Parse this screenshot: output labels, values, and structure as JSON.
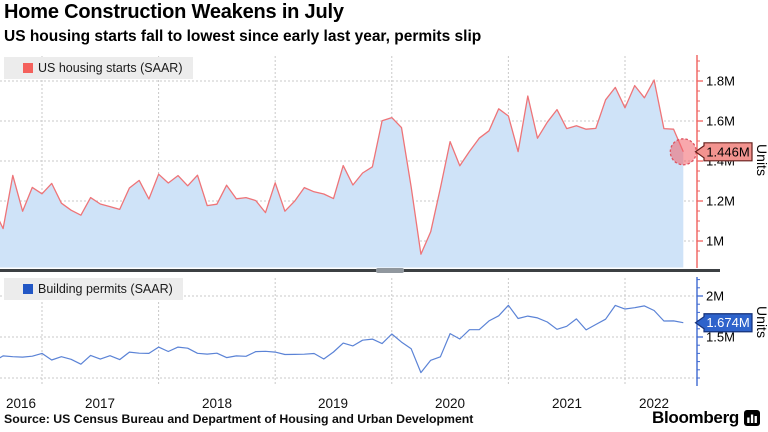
{
  "header": {
    "title": "Home Construction Weakens in July",
    "subtitle": "US housing starts fall to lowest since early last year, permits slip"
  },
  "source": "Source: US Census Bureau and Department of Housing and Urban Development",
  "brand": {
    "name": "Bloomberg"
  },
  "colors": {
    "starts_line": "#ee7478",
    "starts_area": "#cfe3f8",
    "starts_axis": "#f0625f",
    "starts_swatch": "#f4615c",
    "starts_callout_bg": "#f2938f",
    "starts_callout_border": "#66201d",
    "starts_callout_text": "#000000",
    "starts_marker_fill": "rgba(242,96,103,0.55)",
    "starts_marker_stroke": "#de5260",
    "permits_line": "#5b83d6",
    "permits_axis": "#3f6ad1",
    "permits_swatch": "#2257c5",
    "permits_callout_bg": "#2e63cb",
    "permits_callout_border": "#16327a",
    "permits_callout_text": "#ffffff",
    "grid": "#c9c9c9",
    "separator": "#3c4043",
    "separator_handle": "#90979e",
    "legend_bg": "#ececec"
  },
  "panels": [
    {
      "legend": "US housing starts (SAAR)",
      "units_label": "Units",
      "callout_value": "1.446M",
      "y_ticks": [
        "1.8M",
        "1.6M",
        "1.4M",
        "1.2M",
        "1M"
      ],
      "y_tick_values": [
        1.8,
        1.6,
        1.4,
        1.2,
        1.0
      ]
    },
    {
      "legend": "Building permits (SAAR)",
      "units_label": "Units",
      "callout_value": "1.674M",
      "y_ticks": [
        "2M",
        "1.5M"
      ],
      "y_tick_values": [
        2.0,
        1.5
      ]
    }
  ],
  "x_axis": {
    "year_labels": [
      "2016",
      "2017",
      "2018",
      "2019",
      "2020",
      "2021",
      "2022"
    ]
  },
  "chart_data": [
    {
      "type": "area",
      "name": "US housing starts (SAAR)",
      "unit": "millions of units, seasonally adjusted annual rate",
      "months": [
        "2016-08",
        "2016-09",
        "2016-10",
        "2016-11",
        "2016-12",
        "2017-01",
        "2017-02",
        "2017-03",
        "2017-04",
        "2017-05",
        "2017-06",
        "2017-07",
        "2017-08",
        "2017-09",
        "2017-10",
        "2017-11",
        "2017-12",
        "2018-01",
        "2018-02",
        "2018-03",
        "2018-04",
        "2018-05",
        "2018-06",
        "2018-07",
        "2018-08",
        "2018-09",
        "2018-10",
        "2018-11",
        "2018-12",
        "2019-01",
        "2019-02",
        "2019-03",
        "2019-04",
        "2019-05",
        "2019-06",
        "2019-07",
        "2019-08",
        "2019-09",
        "2019-10",
        "2019-11",
        "2019-12",
        "2020-01",
        "2020-02",
        "2020-03",
        "2020-04",
        "2020-05",
        "2020-06",
        "2020-07",
        "2020-08",
        "2020-09",
        "2020-10",
        "2020-11",
        "2020-12",
        "2021-01",
        "2021-02",
        "2021-03",
        "2021-04",
        "2021-05",
        "2021-06",
        "2021-07",
        "2021-08",
        "2021-09",
        "2021-10",
        "2021-11",
        "2021-12",
        "2022-01",
        "2022-02",
        "2022-03",
        "2022-04",
        "2022-05",
        "2022-06",
        "2022-07"
      ],
      "values": [
        1.164,
        1.062,
        1.328,
        1.149,
        1.268,
        1.236,
        1.288,
        1.189,
        1.154,
        1.129,
        1.217,
        1.185,
        1.172,
        1.158,
        1.265,
        1.303,
        1.21,
        1.334,
        1.29,
        1.327,
        1.276,
        1.329,
        1.177,
        1.184,
        1.279,
        1.211,
        1.217,
        1.202,
        1.142,
        1.291,
        1.149,
        1.199,
        1.267,
        1.246,
        1.235,
        1.212,
        1.377,
        1.28,
        1.34,
        1.371,
        1.601,
        1.617,
        1.567,
        1.269,
        0.934,
        1.046,
        1.265,
        1.497,
        1.376,
        1.448,
        1.514,
        1.551,
        1.661,
        1.625,
        1.447,
        1.725,
        1.514,
        1.594,
        1.657,
        1.562,
        1.576,
        1.559,
        1.563,
        1.706,
        1.768,
        1.666,
        1.777,
        1.716,
        1.805,
        1.562,
        1.559,
        1.446
      ],
      "last_value_label": "1.446M",
      "ylabel": "Units",
      "ylim": [
        0.865,
        1.93
      ],
      "grid": true,
      "legend_position": "top-left"
    },
    {
      "type": "line",
      "name": "Building permits (SAAR)",
      "unit": "millions of units, seasonally adjusted annual rate",
      "months": [
        "2016-08",
        "2016-09",
        "2016-10",
        "2016-11",
        "2016-12",
        "2017-01",
        "2017-02",
        "2017-03",
        "2017-04",
        "2017-05",
        "2017-06",
        "2017-07",
        "2017-08",
        "2017-09",
        "2017-10",
        "2017-11",
        "2017-12",
        "2018-01",
        "2018-02",
        "2018-03",
        "2018-04",
        "2018-05",
        "2018-06",
        "2018-07",
        "2018-08",
        "2018-09",
        "2018-10",
        "2018-11",
        "2018-12",
        "2019-01",
        "2019-02",
        "2019-03",
        "2019-04",
        "2019-05",
        "2019-06",
        "2019-07",
        "2019-08",
        "2019-09",
        "2019-10",
        "2019-11",
        "2019-12",
        "2020-01",
        "2020-02",
        "2020-03",
        "2020-04",
        "2020-05",
        "2020-06",
        "2020-07",
        "2020-08",
        "2020-09",
        "2020-10",
        "2020-11",
        "2020-12",
        "2021-01",
        "2021-02",
        "2021-03",
        "2021-04",
        "2021-05",
        "2021-06",
        "2021-07",
        "2021-08",
        "2021-09",
        "2021-10",
        "2021-11",
        "2021-12",
        "2022-01",
        "2022-02",
        "2022-03",
        "2022-04",
        "2022-05",
        "2022-06",
        "2022-07"
      ],
      "values": [
        1.2,
        1.27,
        1.26,
        1.255,
        1.266,
        1.3,
        1.219,
        1.26,
        1.228,
        1.168,
        1.275,
        1.23,
        1.272,
        1.225,
        1.316,
        1.303,
        1.3,
        1.377,
        1.323,
        1.377,
        1.364,
        1.301,
        1.292,
        1.303,
        1.249,
        1.27,
        1.265,
        1.322,
        1.326,
        1.316,
        1.287,
        1.288,
        1.29,
        1.299,
        1.232,
        1.317,
        1.425,
        1.391,
        1.461,
        1.474,
        1.42,
        1.536,
        1.438,
        1.356,
        1.066,
        1.216,
        1.258,
        1.542,
        1.476,
        1.589,
        1.589,
        1.696,
        1.758,
        1.886,
        1.726,
        1.755,
        1.733,
        1.683,
        1.594,
        1.63,
        1.721,
        1.586,
        1.653,
        1.717,
        1.885,
        1.841,
        1.857,
        1.879,
        1.823,
        1.695,
        1.696,
        1.674
      ],
      "last_value_label": "1.674M",
      "ylabel": "Units",
      "ylim": [
        0.91,
        2.11
      ],
      "grid": true,
      "legend_position": "top-left"
    }
  ]
}
